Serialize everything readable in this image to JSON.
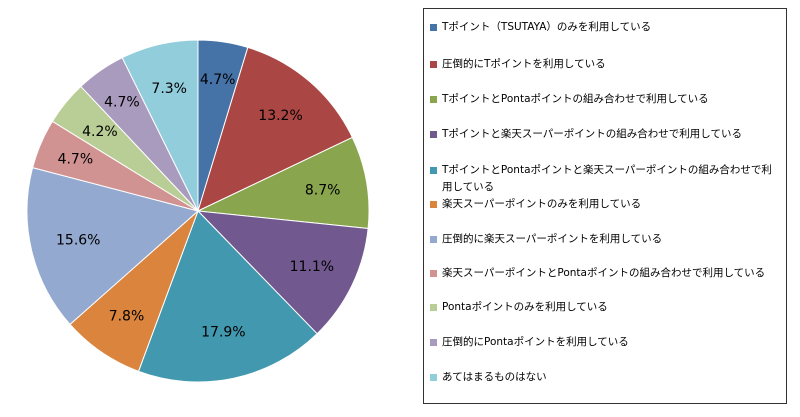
{
  "chart_data": {
    "type": "pie",
    "legend_position": "right",
    "slices": [
      {
        "label": "Tポイント（TSUTAYA）のみを利用している",
        "value": 4.7,
        "value_label": "4.7%",
        "color": "#4572A7"
      },
      {
        "label": "圧倒的にTポイントを利用している",
        "value": 13.2,
        "value_label": "13.2%",
        "color": "#AA4643"
      },
      {
        "label": "TポイントとPontaポイントの組み合わせで利用している",
        "value": 8.7,
        "value_label": "8.7%",
        "color": "#89A54E"
      },
      {
        "label": "Tポイントと楽天スーパーポイントの組み合わせで利用している",
        "value": 11.1,
        "value_label": "11.1%",
        "color": "#71588F"
      },
      {
        "label": "TポイントとPontaポイントと楽天スーパーポイントの組み合わせで利用している",
        "value": 17.9,
        "value_label": "17.9%",
        "color": "#4198AF"
      },
      {
        "label": "楽天スーパーポイントのみを利用している",
        "value": 7.8,
        "value_label": "7.8%",
        "color": "#DB843D"
      },
      {
        "label": "圧倒的に楽天スーパーポイントを利用している",
        "value": 15.6,
        "value_label": "15.6%",
        "color": "#93A9CF"
      },
      {
        "label": "楽天スーパーポイントとPontaポイントの組み合わせで利用している",
        "value": 4.7,
        "value_label": "4.7%",
        "color": "#D19392"
      },
      {
        "label": "Pontaポイントのみを利用している",
        "value": 4.2,
        "value_label": "4.2%",
        "color": "#B9CD96"
      },
      {
        "label": "圧倒的にPontaポイントを利用している",
        "value": 4.7,
        "value_label": "4.7%",
        "color": "#A99BBD"
      },
      {
        "label": "あてはまるものはない",
        "value": 7.3,
        "value_label": "7.3%",
        "color": "#92CDDC"
      }
    ]
  }
}
